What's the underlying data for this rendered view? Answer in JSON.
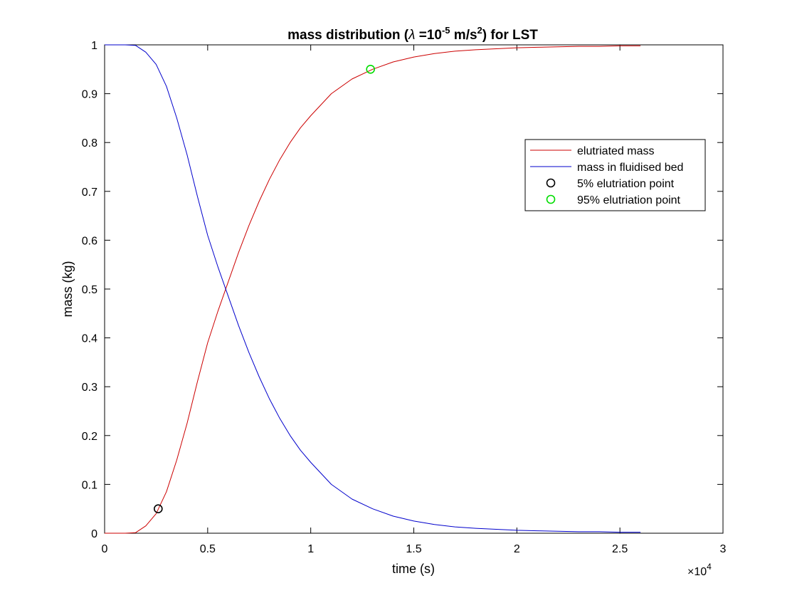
{
  "chart_data": {
    "type": "line",
    "title": {
      "prefix": "mass distribution (",
      "symbol": "λ",
      "mid": " =10",
      "exp1": "-5",
      "unit": " m/s",
      "exp2": "2",
      "suffix": ") for LST"
    },
    "xlabel": "time (s)",
    "ylabel": "mass (kg)",
    "x_multiplier": {
      "base": "×10",
      "exp": "4"
    },
    "xlim": [
      0,
      30000
    ],
    "ylim": [
      0,
      1
    ],
    "x_ticks": [
      0,
      5000,
      10000,
      15000,
      20000,
      25000,
      30000
    ],
    "x_tick_labels": [
      "0",
      "0.5",
      "1",
      "1.5",
      "2",
      "2.5",
      "3"
    ],
    "y_ticks": [
      0,
      0.1,
      0.2,
      0.3,
      0.4,
      0.5,
      0.6,
      0.7,
      0.8,
      0.9,
      1
    ],
    "y_tick_labels": [
      "0",
      "0.1",
      "0.2",
      "0.3",
      "0.4",
      "0.5",
      "0.6",
      "0.7",
      "0.8",
      "0.9",
      "1"
    ],
    "grid": false,
    "legend_position": "upper-right",
    "series": [
      {
        "name": "elutriated mass",
        "color": "#cc0000",
        "kind": "line",
        "x": [
          0,
          1000,
          1500,
          2000,
          2500,
          3000,
          3500,
          4000,
          4500,
          5000,
          5500,
          6000,
          6500,
          7000,
          7500,
          8000,
          8500,
          9000,
          9500,
          10000,
          11000,
          12000,
          13000,
          14000,
          15000,
          16000,
          17000,
          18000,
          19000,
          20000,
          21000,
          22000,
          23000,
          24000,
          25000,
          26000
        ],
        "y": [
          0,
          0,
          0.001,
          0.015,
          0.04,
          0.085,
          0.15,
          0.225,
          0.31,
          0.39,
          0.455,
          0.515,
          0.575,
          0.63,
          0.68,
          0.725,
          0.765,
          0.8,
          0.83,
          0.855,
          0.9,
          0.93,
          0.95,
          0.965,
          0.975,
          0.982,
          0.987,
          0.99,
          0.992,
          0.994,
          0.995,
          0.996,
          0.997,
          0.997,
          0.998,
          0.998
        ]
      },
      {
        "name": "mass in fluidised bed",
        "color": "#0000cc",
        "kind": "line",
        "x": [
          0,
          1000,
          1500,
          2000,
          2500,
          3000,
          3500,
          4000,
          4500,
          5000,
          5500,
          6000,
          6500,
          7000,
          7500,
          8000,
          8500,
          9000,
          9500,
          10000,
          11000,
          12000,
          13000,
          14000,
          15000,
          16000,
          17000,
          18000,
          19000,
          20000,
          21000,
          22000,
          23000,
          24000,
          25000,
          26000
        ],
        "y": [
          1,
          1,
          0.999,
          0.985,
          0.96,
          0.915,
          0.85,
          0.775,
          0.69,
          0.61,
          0.545,
          0.485,
          0.425,
          0.37,
          0.32,
          0.275,
          0.235,
          0.2,
          0.17,
          0.145,
          0.1,
          0.07,
          0.05,
          0.035,
          0.025,
          0.018,
          0.013,
          0.01,
          0.008,
          0.006,
          0.005,
          0.004,
          0.003,
          0.003,
          0.002,
          0.002
        ]
      },
      {
        "name": "5% elutriation point",
        "color": "#000000",
        "kind": "marker",
        "x": [
          2600
        ],
        "y": [
          0.05
        ]
      },
      {
        "name": "95% elutriation point",
        "color": "#00dd00",
        "kind": "marker",
        "x": [
          12900
        ],
        "y": [
          0.95
        ]
      }
    ]
  }
}
